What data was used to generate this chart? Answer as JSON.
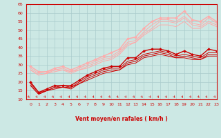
{
  "xlabel": "Vent moyen/en rafales ( km/h )",
  "xlim": [
    -0.5,
    23
  ],
  "ylim": [
    10,
    65
  ],
  "yticks": [
    10,
    15,
    20,
    25,
    30,
    35,
    40,
    45,
    50,
    55,
    60,
    65
  ],
  "xticks": [
    0,
    1,
    2,
    3,
    4,
    5,
    6,
    7,
    8,
    9,
    10,
    11,
    12,
    13,
    14,
    15,
    16,
    17,
    18,
    19,
    20,
    21,
    22,
    23
  ],
  "bg_color": "#cce8e4",
  "grid_color": "#aacccc",
  "spine_color": "#cc0000",
  "tick_color": "#cc0000",
  "lines": [
    {
      "x": [
        0,
        1,
        2,
        3,
        4,
        5,
        6,
        7,
        8,
        9,
        10,
        11,
        12,
        13,
        14,
        15,
        16,
        17,
        18,
        19,
        20,
        21,
        22,
        23
      ],
      "y": [
        20,
        14,
        16,
        18,
        18,
        18,
        21,
        24,
        26,
        28,
        29,
        29,
        34,
        34,
        38,
        39,
        39,
        38,
        36,
        38,
        36,
        35,
        39,
        38
      ],
      "color": "#cc0000",
      "lw": 1.0,
      "marker": "D",
      "ms": 2.0
    },
    {
      "x": [
        0,
        1,
        2,
        3,
        4,
        5,
        6,
        7,
        8,
        9,
        10,
        11,
        12,
        13,
        14,
        15,
        16,
        17,
        18,
        19,
        20,
        21,
        22,
        23
      ],
      "y": [
        19,
        14,
        15,
        17,
        18,
        17,
        20,
        23,
        25,
        27,
        28,
        28,
        32,
        33,
        36,
        37,
        38,
        37,
        35,
        36,
        35,
        34,
        37,
        37
      ],
      "color": "#cc0000",
      "lw": 0.7,
      "marker": null,
      "ms": 0
    },
    {
      "x": [
        0,
        1,
        2,
        3,
        4,
        5,
        6,
        7,
        8,
        9,
        10,
        11,
        12,
        13,
        14,
        15,
        16,
        17,
        18,
        19,
        20,
        21,
        22,
        23
      ],
      "y": [
        18,
        13,
        15,
        17,
        17,
        17,
        19,
        22,
        24,
        26,
        27,
        27,
        31,
        32,
        35,
        36,
        37,
        36,
        34,
        35,
        34,
        33,
        36,
        36
      ],
      "color": "#cc0000",
      "lw": 0.7,
      "marker": null,
      "ms": 0
    },
    {
      "x": [
        0,
        1,
        2,
        3,
        4,
        5,
        6,
        7,
        8,
        9,
        10,
        11,
        12,
        13,
        14,
        15,
        16,
        17,
        18,
        19,
        20,
        21,
        22,
        23
      ],
      "y": [
        18,
        13,
        15,
        16,
        17,
        16,
        19,
        21,
        23,
        25,
        26,
        27,
        30,
        31,
        34,
        35,
        36,
        35,
        34,
        34,
        33,
        33,
        35,
        35
      ],
      "color": "#cc0000",
      "lw": 0.7,
      "marker": null,
      "ms": 0
    },
    {
      "x": [
        0,
        1,
        2,
        3,
        4,
        5,
        6,
        7,
        8,
        9,
        10,
        11,
        12,
        13,
        14,
        15,
        16,
        17,
        18,
        19,
        20,
        21,
        22,
        23
      ],
      "y": [
        29,
        26,
        26,
        28,
        29,
        27,
        29,
        31,
        33,
        35,
        37,
        39,
        45,
        46,
        51,
        55,
        57,
        57,
        57,
        61,
        56,
        55,
        58,
        55
      ],
      "color": "#ffaaaa",
      "lw": 1.0,
      "marker": "D",
      "ms": 2.0
    },
    {
      "x": [
        0,
        1,
        2,
        3,
        4,
        5,
        6,
        7,
        8,
        9,
        10,
        11,
        12,
        13,
        14,
        15,
        16,
        17,
        18,
        19,
        20,
        21,
        22,
        23
      ],
      "y": [
        28,
        25,
        26,
        27,
        28,
        26,
        28,
        30,
        32,
        34,
        35,
        38,
        43,
        44,
        49,
        53,
        56,
        56,
        55,
        58,
        54,
        53,
        57,
        54
      ],
      "color": "#ffaaaa",
      "lw": 0.7,
      "marker": null,
      "ms": 0
    },
    {
      "x": [
        0,
        1,
        2,
        3,
        4,
        5,
        6,
        7,
        8,
        9,
        10,
        11,
        12,
        13,
        14,
        15,
        16,
        17,
        18,
        19,
        20,
        21,
        22,
        23
      ],
      "y": [
        27,
        24,
        25,
        27,
        27,
        26,
        27,
        29,
        31,
        33,
        34,
        37,
        42,
        43,
        48,
        51,
        55,
        55,
        54,
        57,
        53,
        52,
        55,
        53
      ],
      "color": "#ffaaaa",
      "lw": 0.7,
      "marker": null,
      "ms": 0
    },
    {
      "x": [
        0,
        1,
        2,
        3,
        4,
        5,
        6,
        7,
        8,
        9,
        10,
        11,
        12,
        13,
        14,
        15,
        16,
        17,
        18,
        19,
        20,
        21,
        22,
        23
      ],
      "y": [
        27,
        24,
        25,
        26,
        27,
        25,
        27,
        28,
        30,
        32,
        33,
        36,
        41,
        43,
        47,
        50,
        53,
        53,
        52,
        55,
        51,
        51,
        54,
        52
      ],
      "color": "#ffaaaa",
      "lw": 0.7,
      "marker": null,
      "ms": 0
    }
  ]
}
